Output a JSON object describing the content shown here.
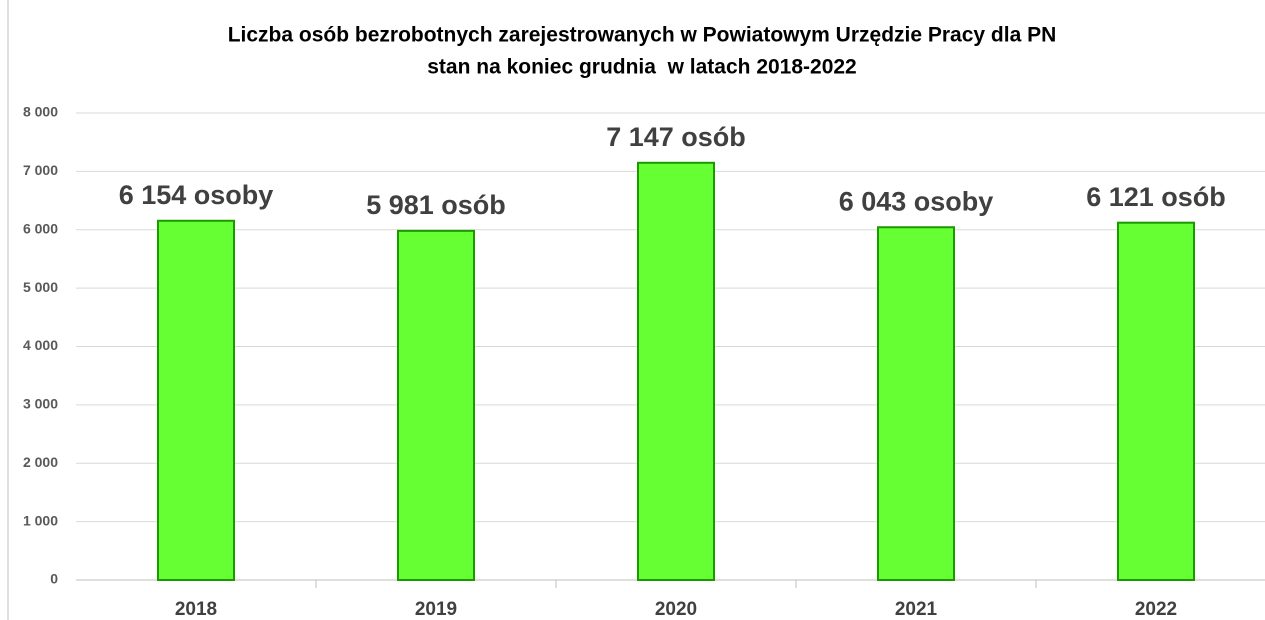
{
  "chart_data": {
    "type": "bar",
    "title": "Liczba osób bezrobotnych zarejestrowanych w Powiatowym Urzędzie Pracy dla PN",
    "subtitle": "stan na koniec grudnia  w latach 2018-2022",
    "categories": [
      "2018",
      "2019",
      "2020",
      "2021",
      "2022"
    ],
    "values": [
      6154,
      5981,
      7147,
      6043,
      6121
    ],
    "value_labels": [
      "6 154 osoby",
      "5 981 osób",
      "7 147 osób",
      "6 043 osoby",
      "6 121 osób"
    ],
    "color": "#66ff33",
    "ylim": [
      0,
      8000
    ],
    "yticks": [
      0,
      {
        "value": 1000,
        "label": "1 000"
      },
      {
        "value": 2000,
        "label": "2 000"
      },
      {
        "value": 3000,
        "label": "3 000"
      },
      {
        "value": 4000,
        "label": "4 000"
      },
      {
        "value": 5000,
        "label": "5 000"
      },
      {
        "value": 6000,
        "label": "6 000"
      },
      {
        "value": 7000,
        "label": "7 000"
      },
      {
        "value": 8000,
        "label": "8 000"
      }
    ],
    "grid": true
  }
}
